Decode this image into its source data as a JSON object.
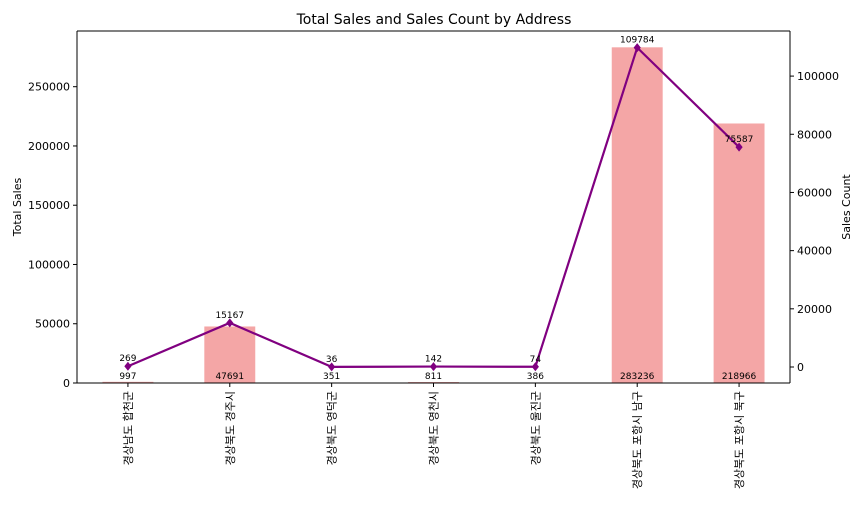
{
  "chart_data": {
    "type": "bar",
    "title": "Total Sales and Sales Count by Address",
    "xlabel": "",
    "ylabel": "Total Sales",
    "y2label": "Sales Count",
    "categories": [
      "경상남도 합천군",
      "경상북도 경주시",
      "경상북도 영덕군",
      "경상북도 영천시",
      "경상북도 울진군",
      "경상북도 포항시 남구",
      "경상북도 포항시 북구"
    ],
    "series": [
      {
        "name": "Total Sales",
        "type": "bar",
        "axis": "left",
        "color": "#f4a6a6",
        "values": [
          997,
          47691,
          351,
          811,
          386,
          283236,
          218966
        ],
        "labels": [
          "997",
          "47691",
          "351",
          "811",
          "386",
          "283236",
          "218966"
        ]
      },
      {
        "name": "Sales Count",
        "type": "line",
        "axis": "right",
        "color": "#800080",
        "values": [
          269,
          15167,
          36,
          142,
          74,
          109784,
          75587
        ],
        "labels": [
          "269",
          "15167",
          "36",
          "142",
          "74",
          "109784",
          "75587"
        ]
      }
    ],
    "ylim": [
      0,
      297000
    ],
    "y2lim": [
      -5500,
      115500
    ],
    "yticks": [
      0,
      50000,
      100000,
      150000,
      200000,
      250000
    ],
    "ytick_labels": [
      "0",
      "50000",
      "100000",
      "150000",
      "200000",
      "250000"
    ],
    "y2ticks": [
      0,
      20000,
      40000,
      60000,
      80000,
      100000
    ],
    "y2tick_labels": [
      "0",
      "20000",
      "40000",
      "60000",
      "80000",
      "100000"
    ],
    "grid": false,
    "legend": "none"
  }
}
